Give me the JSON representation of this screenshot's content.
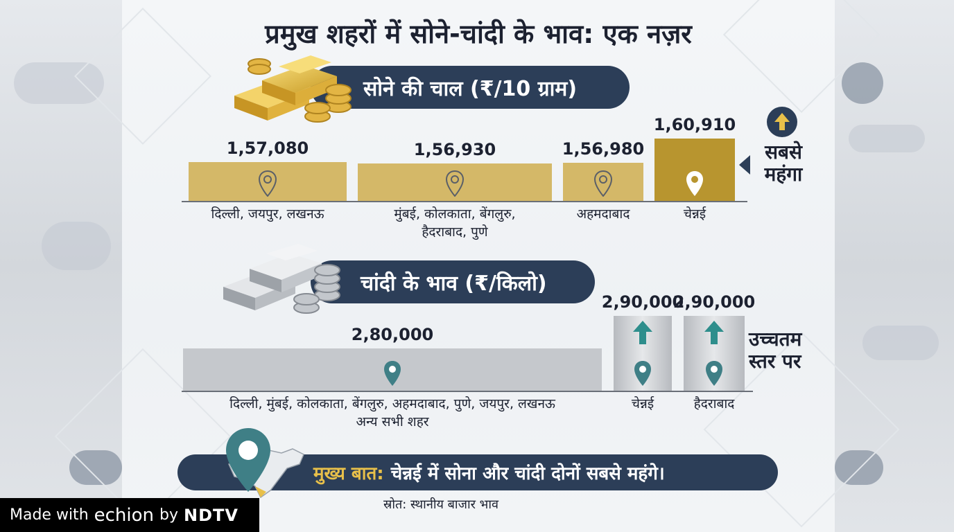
{
  "title": "प्रमुख शहरों में सोने-चांदी के भाव: एक नज़र",
  "colors": {
    "gold_bar": "#d4b868",
    "gold_bar_highlight": "#b8952f",
    "silver_bar": "#c5c8cc",
    "silver_bar_highlight": "#c9cbcf",
    "banner": "#2c3e58",
    "pin": "#3f7f86",
    "accent_gold": "#e8c04a"
  },
  "gold_section": {
    "banner": "सोने की चाल (₹/10 ग्राम)",
    "callout": [
      "सबसे",
      "महंगा"
    ]
  },
  "silver_section": {
    "banner": "चांदी के भाव (₹/किलो)",
    "callout": [
      "उच्चतम",
      "स्तर पर"
    ]
  },
  "chart_data": [
    {
      "type": "bar",
      "title": "सोने की चाल (₹/10 ग्राम)",
      "categories": [
        "दिल्ली, जयपुर, लखनऊ",
        "मुंबई, कोलकाता, बेंगलुरु, हैदराबाद, पुणे",
        "अहमदाबाद",
        "चेन्नई"
      ],
      "category_lines": [
        [
          "दिल्ली, जयपुर, लखनऊ"
        ],
        [
          "मुंबई, कोलकाता, बेंगलुरु,",
          "हैदराबाद, पुणे"
        ],
        [
          "अहमदाबाद"
        ],
        [
          "चेन्नई"
        ]
      ],
      "values": [
        157080,
        156930,
        156980,
        160910
      ],
      "value_labels": [
        "1,57,080",
        "1,56,930",
        "1,56,980",
        "1,60,910"
      ],
      "highlight_index": 3
    },
    {
      "type": "bar",
      "title": "चांदी के भाव (₹/किलो)",
      "categories": [
        "दिल्ली, मुंबई, कोलकाता, बेंगलुरु, अहमदाबाद, पुणे, जयपुर, लखनऊ अन्य सभी शहर",
        "चेन्नई",
        "हैदराबाद"
      ],
      "category_lines": [
        [
          "दिल्ली, मुंबई, कोलकाता, बेंगलुरु, अहमदाबाद, पुणे, जयपुर, लखनऊ",
          "अन्य सभी शहर"
        ],
        [
          "चेन्नई"
        ],
        [
          "हैदराबाद"
        ]
      ],
      "values": [
        280000,
        290000,
        290000
      ],
      "value_labels": [
        "2,80,000",
        "2,90,000",
        "2,90,000"
      ],
      "highlight_indices": [
        1,
        2
      ]
    }
  ],
  "footer": {
    "highlight": "मुख्य बात:",
    "text": "चेन्नई में सोना और चांदी दोनों सबसे महंगे।",
    "source": "स्रोत: स्थानीय बाजार भाव"
  },
  "watermark": {
    "prefix": "Made with",
    "brand": "echion",
    "by": "by",
    "org": "NDTV"
  }
}
